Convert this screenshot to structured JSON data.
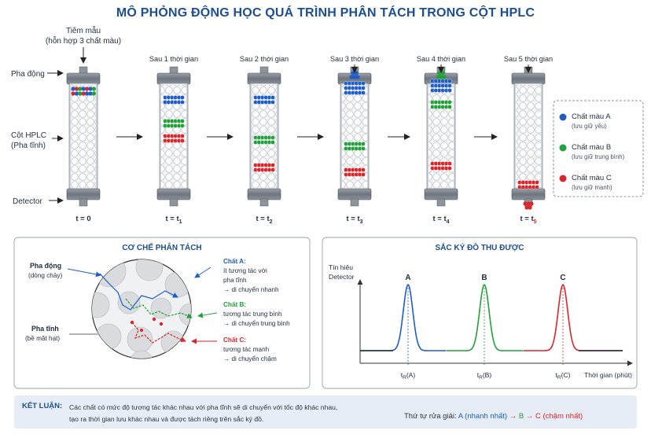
{
  "title": "MÔ PHỎNG ĐỘNG HỌC QUÁ TRÌNH PHÂN TÁCH TRONG CỘT HPLC",
  "colors": {
    "A": "#1e5cc8",
    "B": "#22a03a",
    "C": "#d8262b",
    "title": "#1d4f8f"
  },
  "left_labels": {
    "inject_line1": "Tiêm mẫu",
    "inject_line2": "(hỗn hợp 3 chất màu)",
    "mobile": "Pha động",
    "column_line1": "Cột HPLC",
    "column_line2": "(Pha tĩnh)",
    "detector": "Detector"
  },
  "columns": [
    {
      "caption": "",
      "time": "t = 0",
      "sub": ""
    },
    {
      "caption": "Sau 1 thời gian",
      "time": "t = t",
      "sub": "1"
    },
    {
      "caption": "Sau 2 thời gian",
      "time": "t = t",
      "sub": "2"
    },
    {
      "caption": "Sau 3 thời gian",
      "time": "t = t",
      "sub": "3"
    },
    {
      "caption": "Sau 4 thời gian",
      "time": "t = t",
      "sub": "4"
    },
    {
      "caption": "Sau 5 thời gian",
      "time": "t = t",
      "sub": "5"
    }
  ],
  "legend": [
    {
      "name": "Chất màu A",
      "desc": "(lưu giữ yếu)"
    },
    {
      "name": "Chất màu B",
      "desc": "(lưu giữ trung bình)"
    },
    {
      "name": "Chất màu C",
      "desc": "(lưu giữ mạnh)"
    }
  ],
  "mechanism": {
    "title": "CƠ CHẾ PHÂN TÁCH",
    "mobile_line1": "Pha động",
    "mobile_line2": "(dòng chảy)",
    "stationary_line1": "Pha tĩnh",
    "stationary_line2": "(bề mặt hạt)",
    "a": {
      "head": "Chất A:",
      "lines": [
        "ít tương tác với",
        "pha tĩnh",
        "→ di chuyển nhanh"
      ]
    },
    "b": {
      "head": "Chất B:",
      "lines": [
        "tương tác trung bình",
        "→ di chuyển trung bình"
      ]
    },
    "c": {
      "head": "Chất C:",
      "lines": [
        "tương tác mạnh",
        "→ di chuyển chậm"
      ]
    }
  },
  "chromatogram": {
    "title": "SẮC KÝ ĐỒ THU ĐƯỢC",
    "ylabel_line1": "Tín hiệu",
    "ylabel_line2": "Detector",
    "xlabel": "Thời gian (phút)",
    "peaks": [
      {
        "label": "A",
        "tick": "A"
      },
      {
        "label": "B",
        "tick": "B"
      },
      {
        "label": "C",
        "tick": "C"
      }
    ]
  },
  "chart_data": {
    "type": "line",
    "title": "SẮC KÝ ĐỒ THU ĐƯỢC",
    "xlabel": "Thời gian (phút)",
    "ylabel": "Tín hiệu Detector",
    "series": [
      {
        "name": "A",
        "peak_at": "tR(A)"
      },
      {
        "name": "B",
        "peak_at": "tR(B)"
      },
      {
        "name": "C",
        "peak_at": "tR(C)"
      }
    ]
  },
  "conclusion": {
    "label": "KẾT LUẬN:",
    "line1": "Các chất có mức độ tương tác khác nhau với pha tĩnh sẽ di chuyển với tốc độ khác nhau,",
    "line2": "tạo ra thời gian lưu khác nhau và được tách riêng trên sắc ký đồ.",
    "order_prefix": "Thứ tự rửa giải:",
    "order_a": "A (nhanh nhất)",
    "order_arrow1": "→",
    "order_b": "B",
    "order_arrow2": "→",
    "order_c": "C (chậm nhất)"
  }
}
